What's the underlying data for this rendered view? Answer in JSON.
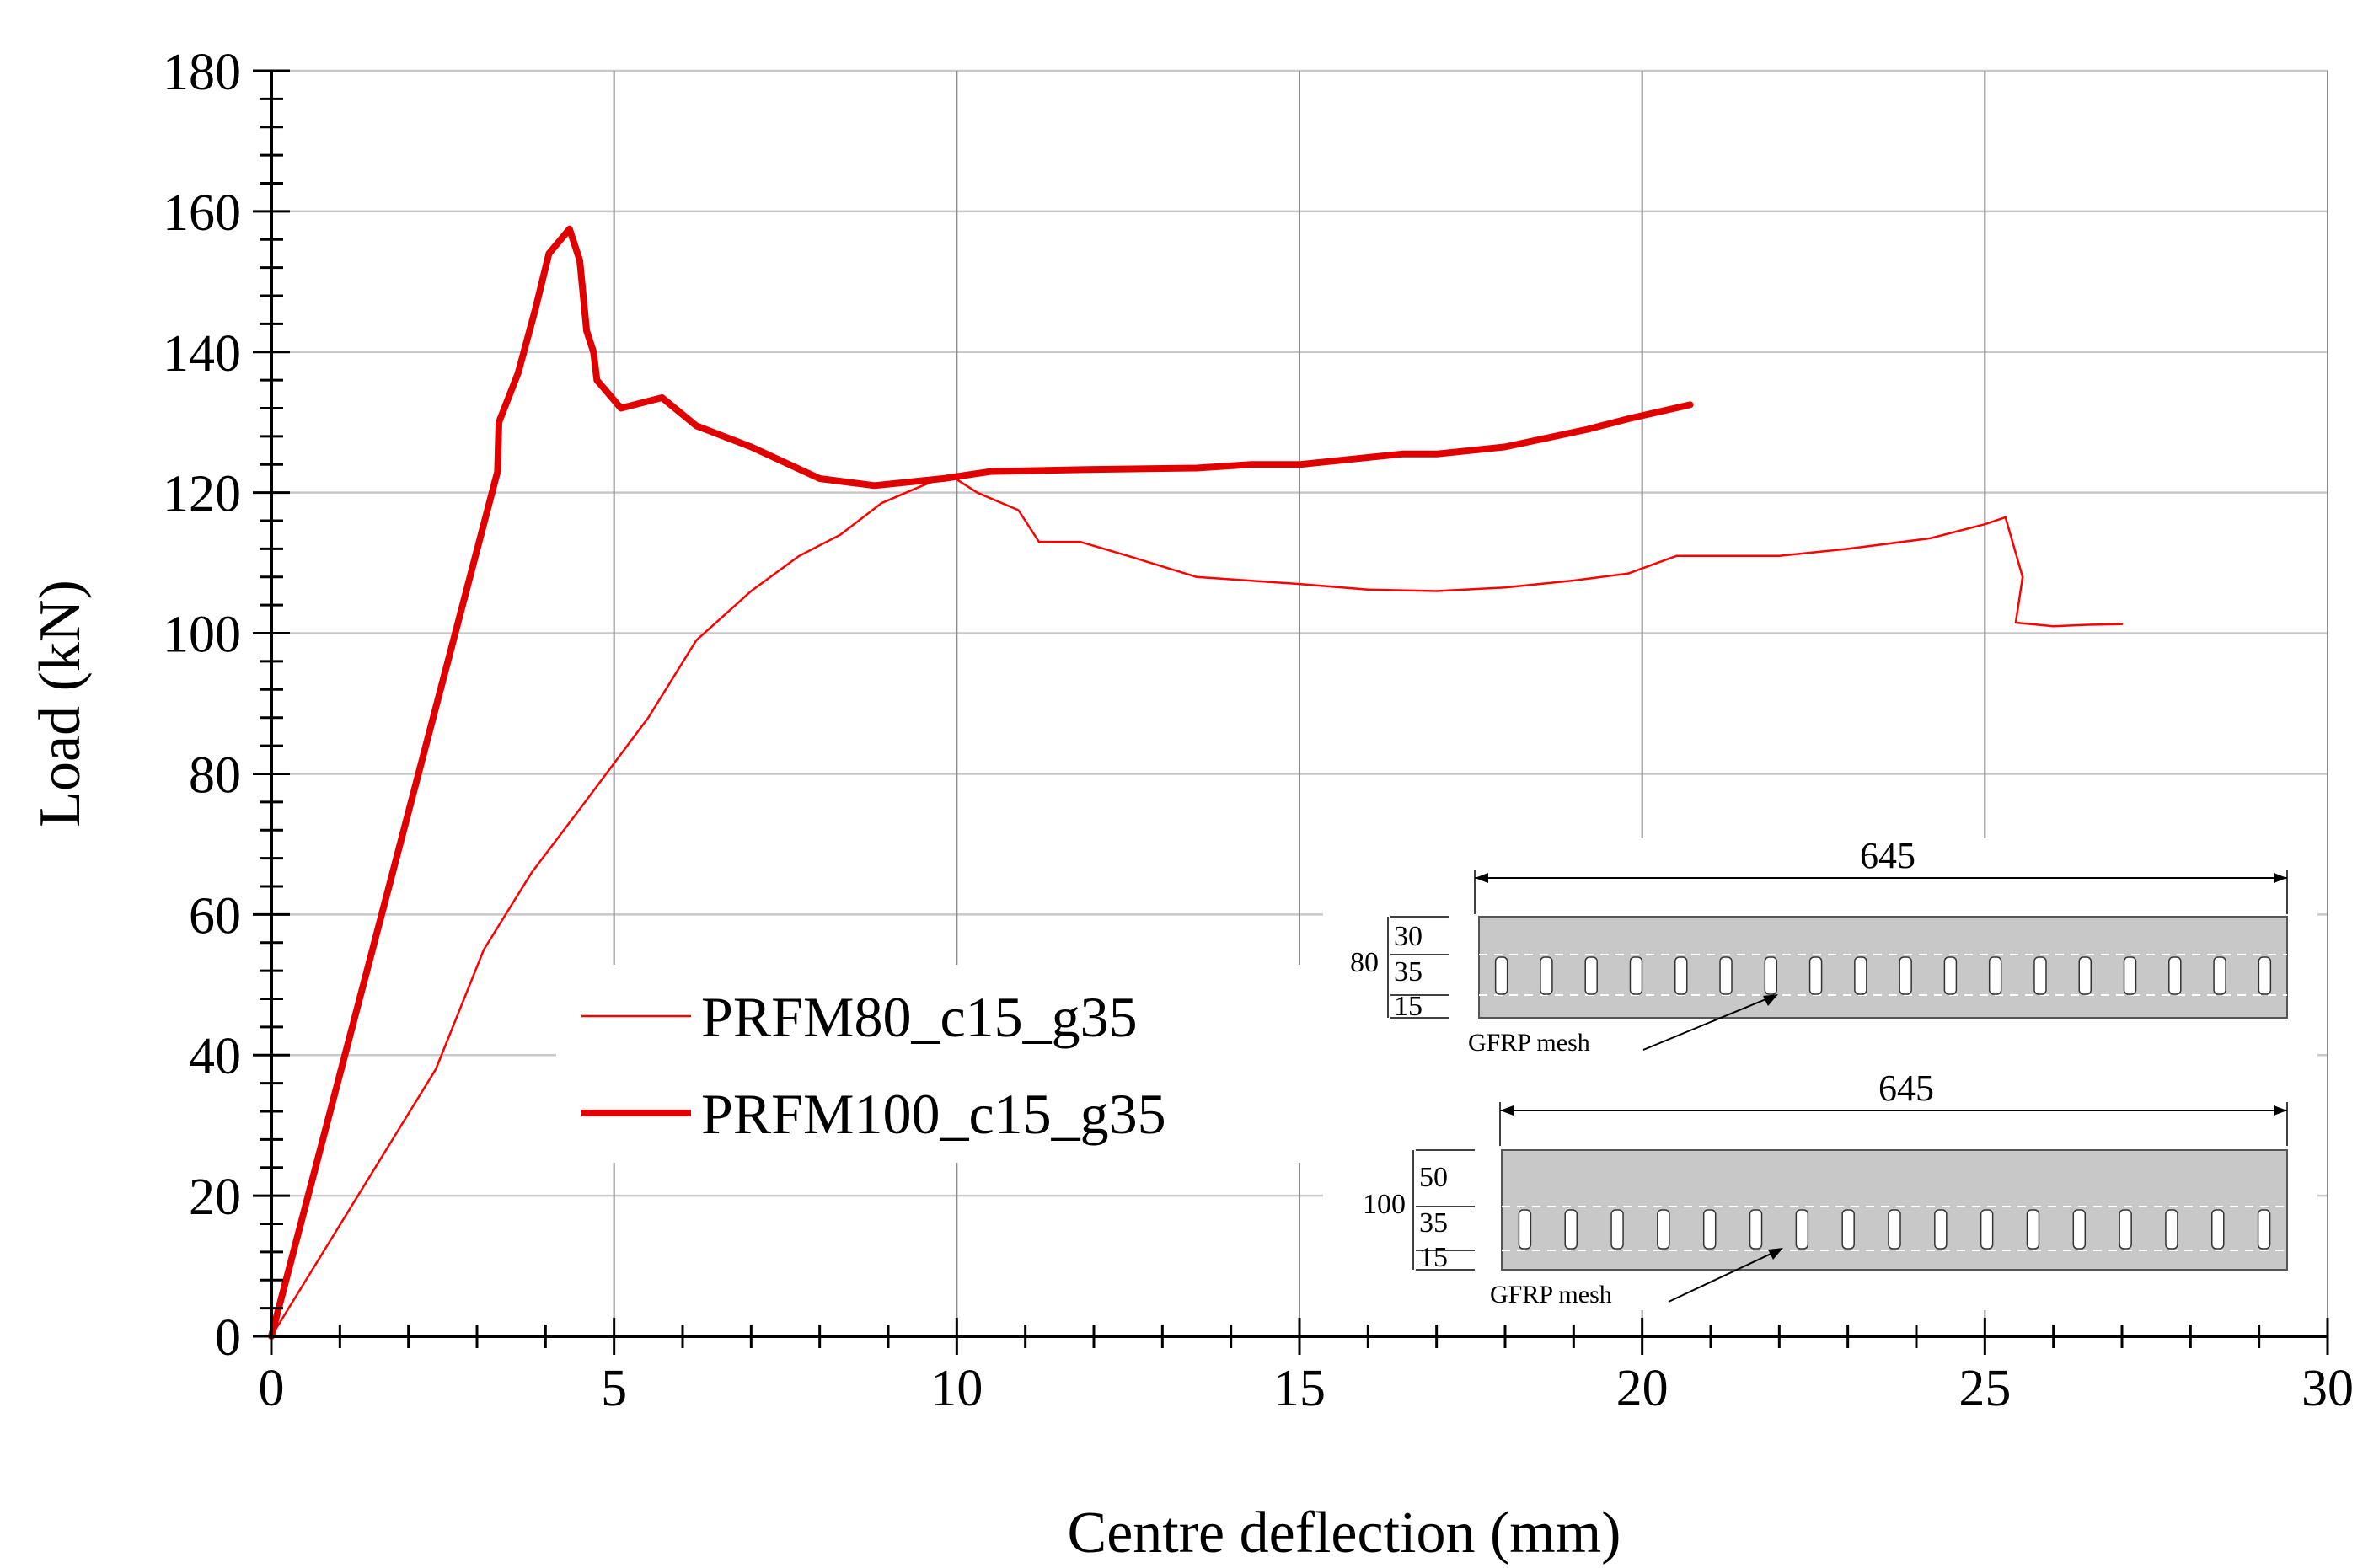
{
  "chart_data": {
    "type": "line",
    "xlabel": "Centre deflection (mm)",
    "ylabel": "Load (kN)",
    "xlim": [
      0,
      30
    ],
    "ylim": [
      0,
      180
    ],
    "x_major_ticks": [
      0,
      5,
      10,
      15,
      20,
      25,
      30
    ],
    "x_tick_labels": [
      "0",
      "5",
      "10",
      "15",
      "20",
      "25",
      "30"
    ],
    "y_major_ticks": [
      0,
      20,
      40,
      60,
      80,
      100,
      120,
      140,
      160,
      180
    ],
    "y_tick_labels": [
      "0",
      "20",
      "40",
      "60",
      "80",
      "100",
      "120",
      "140",
      "160",
      "180"
    ],
    "grid": true,
    "legend_position": "center-left",
    "series": [
      {
        "name": "PRFM80_c15_g35",
        "color": "#ff0000",
        "line_weight": "thin",
        "points": [
          [
            0,
            0
          ],
          [
            2.4,
            38
          ],
          [
            3.1,
            55
          ],
          [
            3.8,
            66
          ],
          [
            4.5,
            75
          ],
          [
            5.5,
            88
          ],
          [
            6.2,
            99
          ],
          [
            7.0,
            106
          ],
          [
            7.7,
            111
          ],
          [
            8.3,
            114
          ],
          [
            8.9,
            118.5
          ],
          [
            9.5,
            121
          ],
          [
            9.9,
            122.5
          ],
          [
            10.3,
            120
          ],
          [
            10.9,
            117.5
          ],
          [
            11.2,
            113
          ],
          [
            11.8,
            113
          ],
          [
            12.5,
            111
          ],
          [
            13.5,
            108
          ],
          [
            15.0,
            107
          ],
          [
            16.0,
            106.2
          ],
          [
            17.0,
            106
          ],
          [
            18.0,
            106.5
          ],
          [
            19.0,
            107.5
          ],
          [
            19.8,
            108.5
          ],
          [
            20.5,
            111
          ],
          [
            22.0,
            111
          ],
          [
            23.0,
            112
          ],
          [
            24.2,
            113.5
          ],
          [
            25.0,
            115.5
          ],
          [
            25.3,
            116.5
          ],
          [
            25.55,
            108
          ],
          [
            25.45,
            101.5
          ],
          [
            26.0,
            101
          ],
          [
            26.5,
            101.2
          ],
          [
            27.0,
            101.3
          ]
        ]
      },
      {
        "name": "PRFM100_c15_g35",
        "color": "#e00000",
        "line_weight": "thick",
        "points": [
          [
            0,
            0
          ],
          [
            3.3,
            123
          ],
          [
            3.32,
            130
          ],
          [
            3.6,
            137
          ],
          [
            3.85,
            146
          ],
          [
            4.05,
            154
          ],
          [
            4.35,
            157.5
          ],
          [
            4.5,
            153
          ],
          [
            4.6,
            143
          ],
          [
            4.7,
            140
          ],
          [
            4.75,
            136
          ],
          [
            5.1,
            132
          ],
          [
            5.7,
            133.5
          ],
          [
            6.2,
            129.5
          ],
          [
            7.0,
            126.5
          ],
          [
            8.0,
            122
          ],
          [
            8.8,
            121
          ],
          [
            9.8,
            122
          ],
          [
            10.5,
            123
          ],
          [
            12.0,
            123.3
          ],
          [
            13.5,
            123.5
          ],
          [
            14.3,
            124
          ],
          [
            15.0,
            124
          ],
          [
            16.5,
            125.5
          ],
          [
            17.0,
            125.5
          ],
          [
            18.0,
            126.5
          ],
          [
            19.2,
            129
          ],
          [
            19.8,
            130.5
          ],
          [
            20.7,
            132.5
          ]
        ]
      }
    ]
  },
  "inset": {
    "top_section": {
      "width_label": "645",
      "depth_label": "80",
      "cover_top": "30",
      "cover_mid": "35",
      "cover_bottom": "15",
      "mesh_label": "GFRP mesh"
    },
    "bottom_section": {
      "width_label": "645",
      "depth_label": "100",
      "cover_top": "50",
      "cover_mid": "35",
      "cover_bottom": "15",
      "mesh_label": "GFRP mesh"
    }
  }
}
